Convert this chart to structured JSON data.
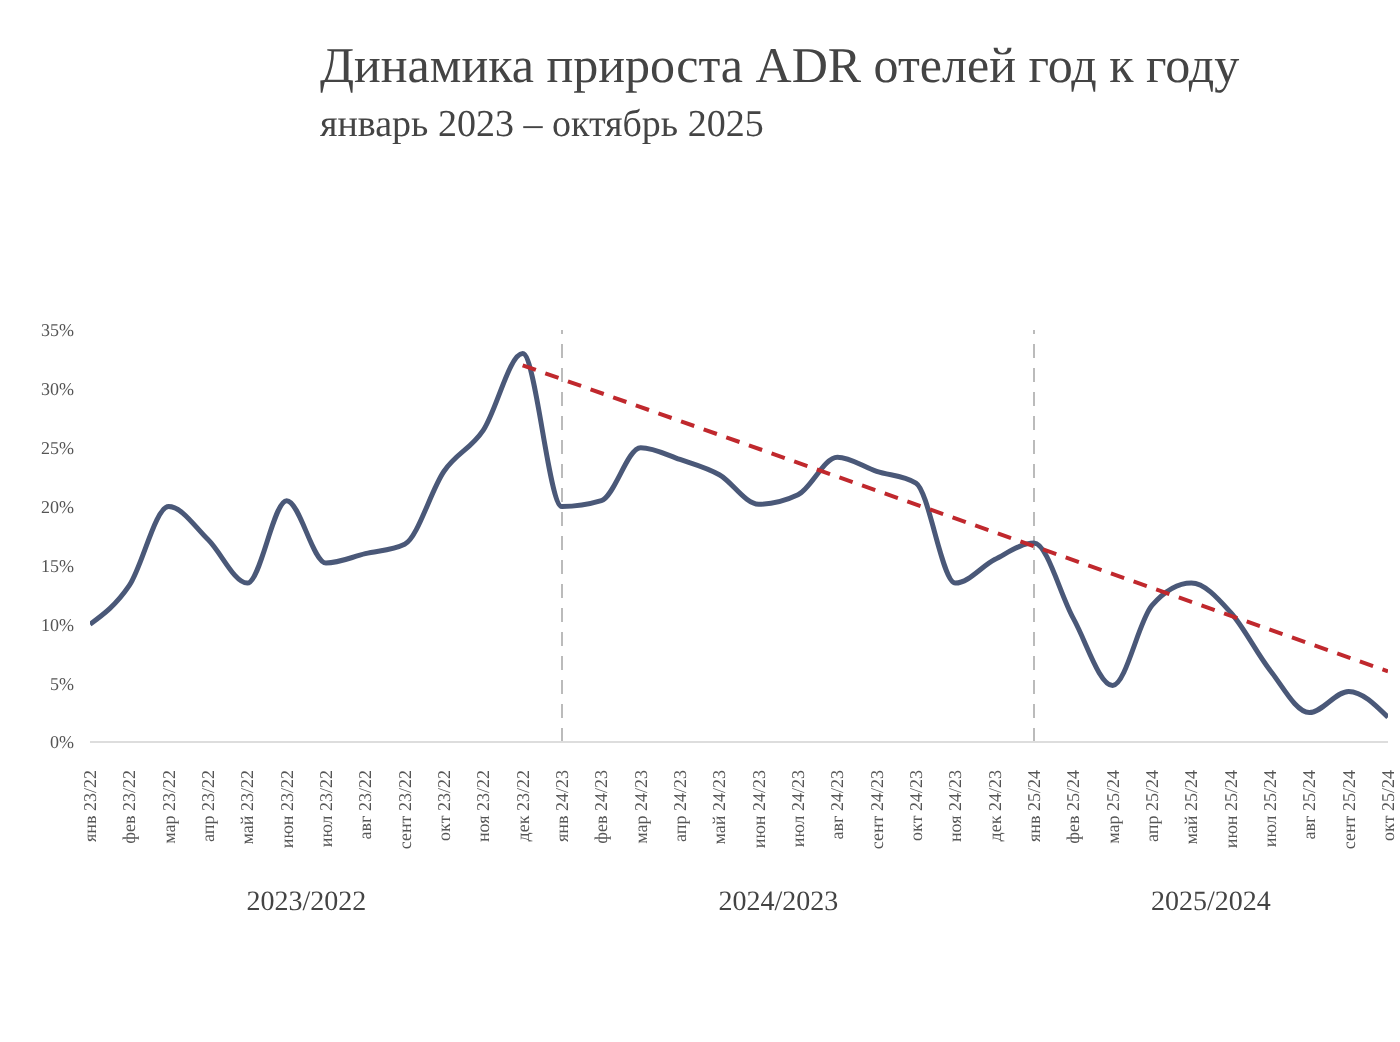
{
  "chart_data": {
    "type": "line",
    "title": "Динамика прироста ADR отелей год к году",
    "subtitle": "январь 2023 – октябрь 2025",
    "categories": [
      "янв 23/22",
      "фев 23/22",
      "мар 23/22",
      "апр 23/22",
      "май 23/22",
      "июн 23/22",
      "июл 23/22",
      "авг 23/22",
      "сент 23/22",
      "окт 23/22",
      "ноя 23/22",
      "дек 23/22",
      "янв 24/23",
      "фев 24/23",
      "мар 24/23",
      "апр 24/23",
      "май 24/23",
      "июн 24/23",
      "июл 24/23",
      "авг 24/23",
      "сент 24/23",
      "окт 24/23",
      "ноя 24/23",
      "дек 24/23",
      "янв 25/24",
      "фев 25/24",
      "мар 25/24",
      "апр 25/24",
      "май 25/24",
      "июн 25/24",
      "июл 25/24",
      "авг 25/24",
      "сент 25/24",
      "окт 25/24"
    ],
    "series": [
      {
        "color": "#4a5878",
        "line_style": "solid",
        "values": [
          10,
          13.3,
          20,
          17.2,
          13.5,
          20.5,
          15.2,
          16,
          16.8,
          23,
          26.5,
          33,
          20,
          20.5,
          25,
          24,
          22.7,
          20.2,
          21,
          24.2,
          23,
          22,
          13.5,
          15.5,
          16.9,
          10.5,
          4.8,
          11.6,
          13.5,
          11,
          6.1,
          2.5,
          4.3,
          2.1
        ]
      },
      {
        "type": "line",
        "color": "#c0282d",
        "line_style": "dashed",
        "values": [
          null,
          null,
          null,
          null,
          null,
          null,
          null,
          null,
          null,
          null,
          null,
          32,
          null,
          null,
          null,
          null,
          null,
          null,
          null,
          null,
          null,
          null,
          null,
          null,
          null,
          null,
          null,
          null,
          null,
          null,
          null,
          null,
          null,
          6
        ]
      }
    ],
    "ylim": [
      0,
      35
    ],
    "yticks": [
      {
        "value": 0,
        "label": "0%"
      },
      {
        "value": 5,
        "label": "5%"
      },
      {
        "value": 10,
        "label": "10%"
      },
      {
        "value": 15,
        "label": "15%"
      },
      {
        "value": 20,
        "label": "20%"
      },
      {
        "value": 25,
        "label": "25%"
      },
      {
        "value": 30,
        "label": "30%"
      },
      {
        "value": 35,
        "label": "35%"
      }
    ],
    "ref_lines": [
      {
        "axis": "x",
        "value": "янв 24/23",
        "color": "#bbbbbb",
        "line_style": "dashed"
      },
      {
        "axis": "x",
        "value": "янв 25/24",
        "color": "#bbbbbb",
        "line_style": "dashed"
      }
    ],
    "annotations": [
      "2023/2022",
      "2024/2023",
      "2025/2024"
    ],
    "grid": false,
    "legend": false,
    "marker": "none"
  }
}
